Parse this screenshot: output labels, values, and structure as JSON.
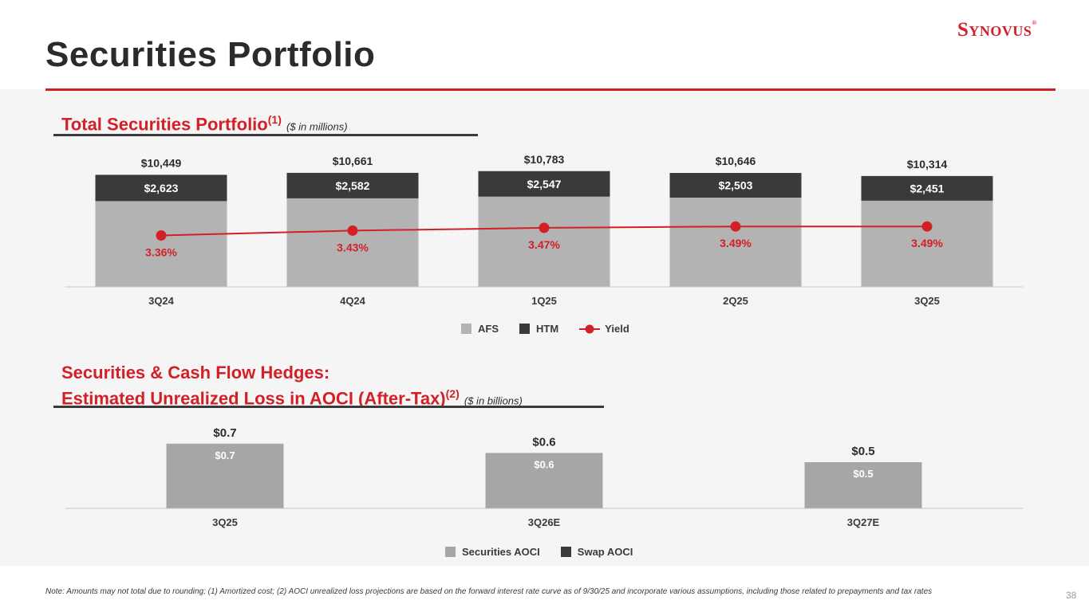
{
  "header": {
    "title": "Securities Portfolio",
    "logo_text": "Synovus",
    "logo_mark": "®"
  },
  "colors": {
    "brand_red": "#d32027",
    "afs_gray": "#b3b3b3",
    "htm_dark": "#3a3a3a",
    "securities_aoci_gray": "#a6a6a6",
    "swap_aoci_dark": "#3a3a3a"
  },
  "section1": {
    "title": "Total Securities Portfolio",
    "sup": "(1)",
    "unit": "($ in millions)",
    "legend": {
      "afs": "AFS",
      "htm": "HTM",
      "yield": "Yield"
    }
  },
  "section2": {
    "title_line1": "Securities & Cash Flow Hedges:",
    "title_line2": "Estimated Unrealized Loss in AOCI (After-Tax)",
    "sup": "(2)",
    "unit": "($ in billions)",
    "legend": {
      "securities": "Securities AOCI",
      "swap": "Swap AOCI"
    }
  },
  "chart_data": [
    {
      "type": "bar",
      "stacked": true,
      "title": "Total Securities Portfolio ($ in millions)",
      "categories": [
        "3Q24",
        "4Q24",
        "1Q25",
        "2Q25",
        "3Q25"
      ],
      "series": [
        {
          "name": "AFS",
          "values": [
            7826,
            8079,
            8236,
            8143,
            7863
          ]
        },
        {
          "name": "HTM",
          "values": [
            2623,
            2582,
            2547,
            2503,
            2451
          ],
          "labels": [
            "$2,623",
            "$2,582",
            "$2,547",
            "$2,503",
            "$2,451"
          ]
        },
        {
          "name": "Yield",
          "type": "line",
          "values": [
            3.36,
            3.43,
            3.47,
            3.49,
            3.49
          ],
          "labels": [
            "3.36%",
            "3.43%",
            "3.47%",
            "3.49%",
            "3.49%"
          ]
        }
      ],
      "totals": [
        10449,
        10661,
        10783,
        10646,
        10314
      ],
      "total_labels": [
        "$10,449",
        "$10,661",
        "$10,783",
        "$10,646",
        "$10,314"
      ],
      "ylim": [
        0,
        12000
      ],
      "yield_range": [
        2.5,
        4.0
      ]
    },
    {
      "type": "bar",
      "stacked": true,
      "title": "Estimated Unrealized Loss in AOCI (After-Tax) ($ in billions)",
      "categories": [
        "3Q25",
        "3Q26E",
        "3Q27E"
      ],
      "series": [
        {
          "name": "Securities AOCI",
          "values": [
            0.7,
            0.6,
            0.5
          ],
          "labels": [
            "$0.7",
            "$0.6",
            "$0.5"
          ]
        },
        {
          "name": "Swap AOCI",
          "values": [
            0.0,
            0.0,
            0.0
          ]
        }
      ],
      "totals": [
        0.7,
        0.6,
        0.5
      ],
      "total_labels": [
        "$0.7",
        "$0.6",
        "$0.5"
      ],
      "ylim": [
        0,
        0.9
      ]
    }
  ],
  "footer": {
    "note": "Note: Amounts may not total due to rounding; (1) Amortized cost; (2) AOCI unrealized loss projections are based on the forward interest rate curve as of 9/30/25 and incorporate various assumptions, including those related to prepayments and tax rates",
    "page": "38"
  }
}
